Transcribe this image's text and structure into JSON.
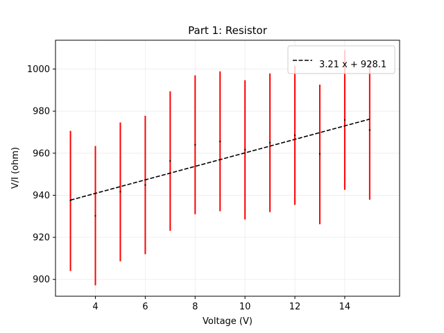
{
  "chart_data": {
    "type": "scatter",
    "title": "Part 1: Resistor",
    "xlabel": "Voltage (V)",
    "ylabel": "V/I (ohm)",
    "xlim": [
      2.4,
      16.2
    ],
    "ylim": [
      892,
      1013.7
    ],
    "xticks": [
      4,
      6,
      8,
      10,
      12,
      14
    ],
    "yticks": [
      900,
      920,
      940,
      960,
      980,
      1000
    ],
    "grid": true,
    "legend_position": "top-right",
    "series": [
      {
        "type": "errorbar",
        "color": "#ff0000",
        "x": [
          3,
          4,
          5,
          6,
          7,
          8,
          9,
          10,
          11,
          12,
          13,
          14,
          15
        ],
        "y": [
          937.5,
          930.2,
          941.7,
          944.9,
          956.3,
          964,
          965.6,
          961.7,
          965,
          968.5,
          959.7,
          975.8,
          971
        ],
        "yerr_low": [
          904,
          897.2,
          908.6,
          912,
          923.1,
          931,
          932.4,
          928.5,
          932,
          935.4,
          926.2,
          942.6,
          937.9
        ],
        "yerr_high": [
          970.6,
          963.4,
          974.6,
          977.8,
          989.4,
          997,
          998.9,
          994.7,
          997.9,
          1001.6,
          992.6,
          1009.1,
          1004.1
        ]
      },
      {
        "type": "line",
        "name": "3.21 x + 928.1",
        "color": "#000000",
        "dashed": true,
        "x": [
          3,
          15
        ],
        "y": [
          937.7,
          976.2
        ]
      }
    ]
  }
}
